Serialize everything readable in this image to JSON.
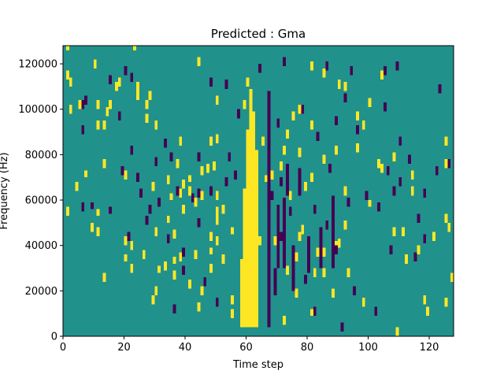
{
  "chart_data": {
    "type": "heatmap",
    "title": "Predicted : Gma",
    "xlabel": "Time step",
    "ylabel": "Frequency (Hz)",
    "xlim": [
      0,
      128
    ],
    "ylim": [
      0,
      128000
    ],
    "xticks": [
      0,
      20,
      40,
      60,
      80,
      100,
      120
    ],
    "yticks": [
      0,
      20000,
      40000,
      60000,
      80000,
      100000,
      120000
    ],
    "grid": false,
    "legend": "none",
    "n_time_steps": 128,
    "n_freq_bins": 128,
    "freq_bin_hz": 1000,
    "levels": [
      -1,
      0,
      1
    ],
    "colormap": {
      "-1": "#440154",
      "0": "#21918c",
      "1": "#fde725"
    },
    "background_level": 0,
    "cells": {
      "high": [
        [
          1,
          53,
          4
        ],
        [
          1,
          113,
          4
        ],
        [
          1,
          126,
          3
        ],
        [
          2,
          98,
          4
        ],
        [
          2,
          110,
          4
        ],
        [
          4,
          64,
          4
        ],
        [
          5,
          100,
          4
        ],
        [
          7,
          70,
          3
        ],
        [
          9,
          46,
          4
        ],
        [
          10,
          118,
          4
        ],
        [
          11,
          44,
          4
        ],
        [
          11,
          53,
          3
        ],
        [
          11,
          91,
          4
        ],
        [
          11,
          100,
          4
        ],
        [
          13,
          24,
          4
        ],
        [
          13,
          74,
          4
        ],
        [
          13,
          91,
          4
        ],
        [
          14,
          97,
          4
        ],
        [
          15,
          100,
          4
        ],
        [
          17,
          108,
          4
        ],
        [
          18,
          110,
          4
        ],
        [
          20,
          33,
          3
        ],
        [
          20,
          40,
          4
        ],
        [
          20,
          69,
          4
        ],
        [
          22,
          28,
          4
        ],
        [
          22,
          38,
          4
        ],
        [
          23,
          126,
          3
        ],
        [
          24,
          104,
          4
        ],
        [
          24,
          108,
          4
        ],
        [
          26,
          34,
          4
        ],
        [
          27,
          94,
          4
        ],
        [
          27,
          100,
          4
        ],
        [
          28,
          104,
          4
        ],
        [
          29,
          14,
          4
        ],
        [
          29,
          64,
          4
        ],
        [
          30,
          18,
          4
        ],
        [
          30,
          44,
          4
        ],
        [
          30,
          91,
          4
        ],
        [
          31,
          28,
          3
        ],
        [
          33,
          29,
          4
        ],
        [
          34,
          50,
          3
        ],
        [
          34,
          67,
          4
        ],
        [
          35,
          60,
          3
        ],
        [
          36,
          25,
          4
        ],
        [
          36,
          32,
          3
        ],
        [
          36,
          43,
          4
        ],
        [
          37,
          74,
          4
        ],
        [
          38,
          33,
          4
        ],
        [
          38,
          61,
          4
        ],
        [
          38,
          84,
          4
        ],
        [
          39,
          54,
          4
        ],
        [
          39,
          65,
          4
        ],
        [
          41,
          21,
          4
        ],
        [
          41,
          62,
          4
        ],
        [
          41,
          68,
          3
        ],
        [
          43,
          34,
          4
        ],
        [
          43,
          57,
          4
        ],
        [
          44,
          11,
          4
        ],
        [
          44,
          119,
          4
        ],
        [
          45,
          18,
          4
        ],
        [
          45,
          60,
          4
        ],
        [
          45,
          71,
          4
        ],
        [
          47,
          72,
          4
        ],
        [
          48,
          28,
          4
        ],
        [
          48,
          36,
          3
        ],
        [
          48,
          42,
          4
        ],
        [
          48,
          84,
          4
        ],
        [
          49,
          73,
          4
        ],
        [
          50,
          40,
          4
        ],
        [
          50,
          49,
          4
        ],
        [
          50,
          53,
          4
        ],
        [
          50,
          60,
          4
        ],
        [
          50,
          85,
          4
        ],
        [
          50,
          102,
          4
        ],
        [
          52,
          32,
          4
        ],
        [
          52,
          54,
          4
        ],
        [
          55,
          8,
          4
        ],
        [
          55,
          14,
          4
        ],
        [
          55,
          45,
          3
        ],
        [
          58,
          30,
          4
        ],
        [
          59,
          100,
          4
        ],
        [
          60,
          110,
          4
        ],
        [
          61,
          105,
          4
        ],
        [
          62,
          86,
          4
        ],
        [
          64,
          40,
          4
        ],
        [
          65,
          84,
          4
        ],
        [
          66,
          68,
          3
        ],
        [
          68,
          69,
          4
        ],
        [
          69,
          40,
          4
        ],
        [
          71,
          73,
          4
        ],
        [
          72,
          5,
          4
        ],
        [
          72,
          80,
          4
        ],
        [
          73,
          27,
          4
        ],
        [
          73,
          87,
          4
        ],
        [
          74,
          60,
          4
        ],
        [
          75,
          95,
          4
        ],
        [
          76,
          17,
          4
        ],
        [
          76,
          33,
          4
        ],
        [
          77,
          42,
          4
        ],
        [
          77,
          79,
          4
        ],
        [
          77,
          98,
          4
        ],
        [
          78,
          45,
          4
        ],
        [
          79,
          64,
          4
        ],
        [
          81,
          9,
          3
        ],
        [
          81,
          68,
          4
        ],
        [
          81,
          91,
          4
        ],
        [
          81,
          117,
          4
        ],
        [
          82,
          26,
          4
        ],
        [
          83,
          35,
          4
        ],
        [
          85,
          26,
          4
        ],
        [
          85,
          35,
          4
        ],
        [
          85,
          76,
          4
        ],
        [
          85,
          114,
          4
        ],
        [
          88,
          17,
          4
        ],
        [
          89,
          39,
          3
        ],
        [
          89,
          80,
          4
        ],
        [
          90,
          39,
          4
        ],
        [
          90,
          109,
          4
        ],
        [
          92,
          47,
          4
        ],
        [
          92,
          62,
          4
        ],
        [
          92,
          108,
          4
        ],
        [
          93,
          26,
          4
        ],
        [
          96,
          81,
          4
        ],
        [
          96,
          95,
          4
        ],
        [
          98,
          13,
          4
        ],
        [
          98,
          91,
          4
        ],
        [
          100,
          57,
          3
        ],
        [
          100,
          101,
          4
        ],
        [
          103,
          74,
          4
        ],
        [
          104,
          72,
          4
        ],
        [
          104,
          113,
          4
        ],
        [
          108,
          44,
          4
        ],
        [
          108,
          77,
          4
        ],
        [
          109,
          0,
          4
        ],
        [
          111,
          44,
          4
        ],
        [
          112,
          32,
          4
        ],
        [
          114,
          62,
          4
        ],
        [
          114,
          69,
          4
        ],
        [
          116,
          36,
          4
        ],
        [
          118,
          14,
          4
        ],
        [
          119,
          9,
          4
        ],
        [
          121,
          42,
          4
        ],
        [
          125,
          13,
          4
        ],
        [
          125,
          50,
          4
        ],
        [
          125,
          74,
          4
        ],
        [
          125,
          84,
          4
        ],
        [
          126,
          46,
          4
        ],
        [
          127,
          24,
          4
        ]
      ],
      "low": [
        [
          6,
          55,
          4
        ],
        [
          6,
          89,
          4
        ],
        [
          6,
          100,
          4
        ],
        [
          7,
          102,
          4
        ],
        [
          9,
          56,
          3
        ],
        [
          15,
          54,
          3
        ],
        [
          15,
          111,
          4
        ],
        [
          18,
          95,
          4
        ],
        [
          19,
          71,
          4
        ],
        [
          20,
          115,
          4
        ],
        [
          21,
          42,
          4
        ],
        [
          22,
          80,
          4
        ],
        [
          22,
          112,
          4
        ],
        [
          24,
          68,
          4
        ],
        [
          25,
          61,
          4
        ],
        [
          27,
          49,
          4
        ],
        [
          28,
          54,
          4
        ],
        [
          30,
          75,
          4
        ],
        [
          31,
          57,
          4
        ],
        [
          33,
          83,
          4
        ],
        [
          34,
          41,
          4
        ],
        [
          35,
          77,
          4
        ],
        [
          36,
          10,
          4
        ],
        [
          37,
          62,
          4
        ],
        [
          39,
          27,
          4
        ],
        [
          39,
          35,
          4
        ],
        [
          42,
          59,
          4
        ],
        [
          44,
          48,
          4
        ],
        [
          44,
          61,
          4
        ],
        [
          44,
          77,
          4
        ],
        [
          46,
          22,
          4
        ],
        [
          48,
          62,
          4
        ],
        [
          48,
          110,
          4
        ],
        [
          50,
          13,
          4
        ],
        [
          53,
          66,
          4
        ],
        [
          53,
          109,
          4
        ],
        [
          54,
          77,
          4
        ],
        [
          56,
          69,
          4
        ],
        [
          57,
          96,
          4
        ],
        [
          59,
          50,
          4
        ],
        [
          62,
          63,
          4
        ],
        [
          64,
          116,
          4
        ],
        [
          68,
          60,
          4
        ],
        [
          70,
          92,
          4
        ],
        [
          71,
          42,
          4
        ],
        [
          71,
          66,
          4
        ],
        [
          72,
          119,
          4
        ],
        [
          74,
          53,
          4
        ],
        [
          78,
          98,
          4
        ],
        [
          79,
          23,
          4
        ],
        [
          80,
          40,
          4
        ],
        [
          82,
          9,
          4
        ],
        [
          82,
          54,
          4
        ],
        [
          83,
          86,
          4
        ],
        [
          84,
          30,
          4
        ],
        [
          86,
          47,
          4
        ],
        [
          86,
          117,
          4
        ],
        [
          87,
          72,
          4
        ],
        [
          89,
          36,
          4
        ],
        [
          89,
          93,
          4
        ],
        [
          91,
          2,
          4
        ],
        [
          92,
          103,
          4
        ],
        [
          93,
          57,
          4
        ],
        [
          94,
          115,
          4
        ],
        [
          95,
          18,
          4
        ],
        [
          96,
          89,
          4
        ],
        [
          99,
          60,
          4
        ],
        [
          102,
          9,
          4
        ],
        [
          103,
          55,
          4
        ],
        [
          105,
          99,
          4
        ],
        [
          105,
          115,
          4
        ],
        [
          106,
          71,
          4
        ],
        [
          107,
          36,
          4
        ],
        [
          108,
          62,
          4
        ],
        [
          109,
          117,
          4
        ],
        [
          110,
          66,
          4
        ],
        [
          110,
          84,
          4
        ],
        [
          113,
          76,
          4
        ],
        [
          115,
          33,
          4
        ],
        [
          116,
          50,
          4
        ],
        [
          118,
          41,
          4
        ],
        [
          118,
          61,
          4
        ],
        [
          122,
          71,
          4
        ],
        [
          123,
          107,
          4
        ],
        [
          126,
          74,
          4
        ]
      ],
      "high_columns": [
        [
          58,
          4,
          33
        ],
        [
          59,
          4,
          65
        ],
        [
          60,
          4,
          91
        ],
        [
          61,
          4,
          108
        ],
        [
          62,
          4,
          99
        ],
        [
          63,
          4,
          82
        ]
      ],
      "low_columns": [
        [
          67,
          4,
          108
        ],
        [
          69,
          18,
          30
        ],
        [
          70,
          30,
          58
        ],
        [
          72,
          30,
          61
        ],
        [
          73,
          62,
          76
        ],
        [
          75,
          20,
          40
        ],
        [
          77,
          62,
          74
        ],
        [
          80,
          28,
          44
        ],
        [
          84,
          34,
          48
        ],
        [
          88,
          30,
          62
        ]
      ]
    }
  }
}
